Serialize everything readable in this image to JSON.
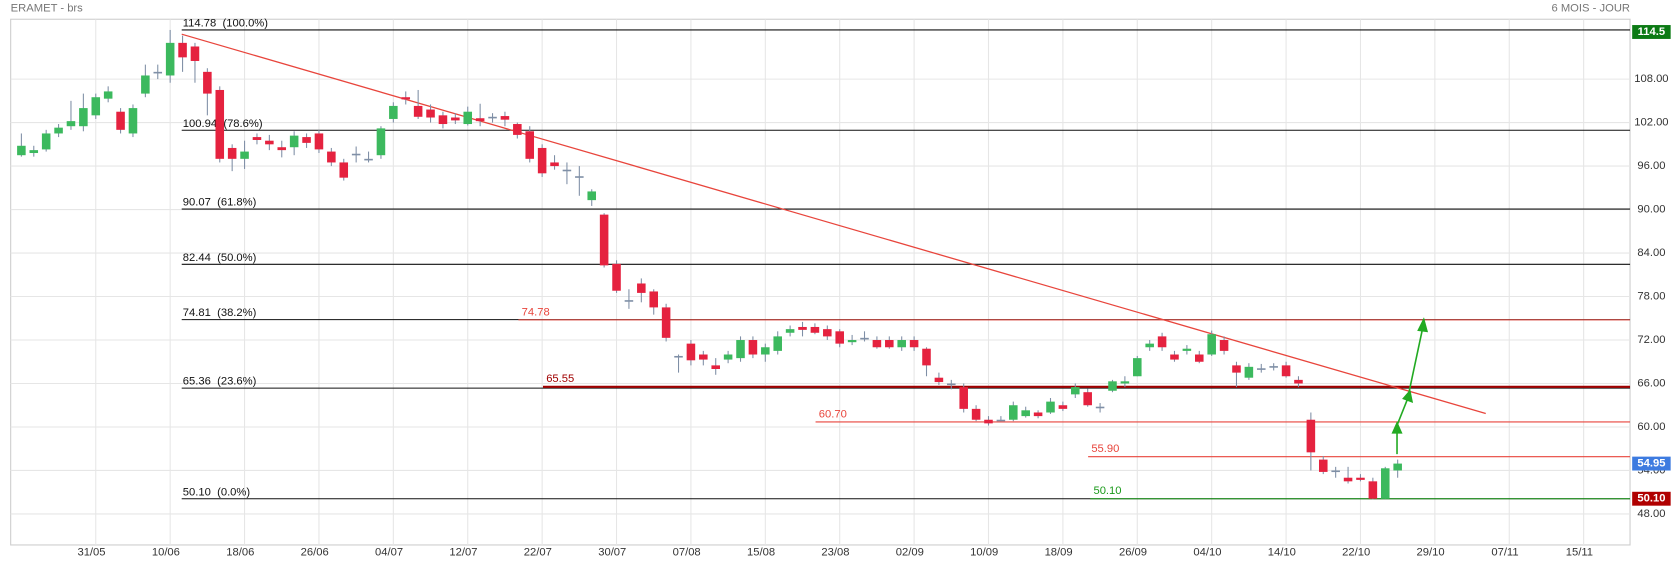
{
  "chart_data": {
    "type": "candlestick",
    "title": "ERAMET - brs",
    "period": "6 MOIS - JOUR",
    "up_color": "#3cb95e",
    "down_color": "#e5223f",
    "grid": true,
    "categories": [
      null,
      null,
      null,
      null,
      null,
      null,
      "31/05",
      null,
      null,
      null,
      null,
      null,
      "10/06",
      null,
      null,
      null,
      null,
      null,
      "18/06",
      null,
      null,
      null,
      null,
      null,
      "26/06",
      null,
      null,
      null,
      null,
      null,
      "04/07",
      null,
      null,
      null,
      null,
      null,
      "12/07",
      null,
      null,
      null,
      null,
      null,
      "22/07",
      null,
      null,
      null,
      null,
      null,
      "30/07",
      null,
      null,
      null,
      null,
      null,
      "07/08",
      null,
      null,
      null,
      null,
      null,
      "15/08",
      null,
      null,
      null,
      null,
      null,
      "23/08",
      null,
      null,
      null,
      null,
      null,
      "02/09",
      null,
      null,
      null,
      null,
      null,
      "10/09",
      null,
      null,
      null,
      null,
      null,
      "18/09",
      null,
      null,
      null,
      null,
      null,
      "26/09",
      null,
      null,
      null,
      null,
      null,
      "04/10",
      null,
      null,
      null,
      null,
      null,
      "14/10",
      null,
      null,
      null,
      null,
      null,
      "22/10",
      null,
      null,
      null,
      null,
      null,
      "29/10",
      null,
      null,
      null,
      null,
      null,
      "07/11",
      null,
      null,
      null,
      null,
      null,
      "15/11",
      null,
      null,
      null
    ],
    "open": [
      97.5,
      97.8,
      98.3,
      100.5,
      101.5,
      101.5,
      103,
      105.3,
      103.5,
      100.5,
      106,
      109,
      108.5,
      113,
      112.5,
      109,
      106.5,
      98.5,
      97,
      100,
      99.5,
      98.6,
      98.6,
      100,
      100.5,
      98,
      96.5,
      97.5,
      97,
      97.5,
      102.5,
      105.5,
      104.3,
      103.8,
      103,
      102.7,
      101.8,
      102.6,
      102.6,
      102.9,
      101.8,
      100.8,
      98.5,
      96.5,
      95.5,
      94.6,
      91.3,
      89.3,
      82.5,
      77.5,
      79.8,
      78.7,
      76.5,
      69.8,
      71.5,
      70,
      68.5,
      69.3,
      69.5,
      72,
      70,
      70.5,
      73,
      73.8,
      73.8,
      73.5,
      73.2,
      71.7,
      72.2,
      72,
      72,
      71,
      72,
      70.8,
      66.8,
      66,
      65.5,
      62.5,
      61,
      61,
      61,
      61.5,
      62,
      62,
      63,
      64.5,
      64.8,
      62.8,
      65,
      66,
      67,
      71,
      72.5,
      70,
      70.5,
      70,
      70,
      72,
      68.5,
      66.8,
      68,
      68.2,
      68.5,
      66.5,
      61,
      55.5,
      54,
      53,
      53,
      52.5,
      50.1,
      54,
      null,
      null,
      null,
      null,
      null,
      null,
      null,
      null,
      null,
      null,
      null,
      null,
      null,
      null,
      null,
      null,
      null,
      null
    ],
    "high": [
      100.5,
      98.8,
      101,
      101.8,
      105,
      106,
      106,
      107,
      104,
      104.5,
      110,
      110,
      114.78,
      114,
      113,
      109.5,
      107,
      99,
      99.5,
      100.5,
      100.3,
      99.5,
      100.8,
      100.5,
      101,
      98.5,
      97,
      98.7,
      98,
      101.5,
      104.8,
      106.3,
      106.5,
      104.5,
      103.5,
      103.3,
      104.2,
      104.6,
      103.3,
      103.5,
      102,
      101.5,
      99,
      97.5,
      96.5,
      96,
      92.8,
      89.5,
      83,
      79,
      80.5,
      79,
      77,
      70,
      72,
      70.5,
      69.5,
      70.5,
      72.5,
      72.5,
      71.5,
      73.2,
      74,
      74.5,
      74.3,
      74,
      73.5,
      72.7,
      73.2,
      72.5,
      72.5,
      72.5,
      72.5,
      71,
      67.5,
      66.5,
      66,
      63,
      61.5,
      61.5,
      63.5,
      62.8,
      62.3,
      64,
      63.5,
      66,
      65.3,
      63.3,
      66.5,
      67,
      69.8,
      72,
      73,
      70.5,
      71.3,
      70.5,
      73.3,
      72.5,
      69,
      68.8,
      68.7,
      68.8,
      69,
      67,
      62,
      56,
      54.5,
      54.5,
      53.5,
      53,
      54.5,
      55.5,
      null,
      null,
      null,
      null,
      null,
      null,
      null,
      null,
      null,
      null,
      null,
      null,
      null,
      null,
      null,
      null,
      null,
      null
    ],
    "low": [
      97.3,
      97.3,
      98,
      100,
      101,
      100.8,
      102.5,
      104.8,
      100.5,
      100,
      105.5,
      108,
      107.5,
      109,
      107.5,
      103,
      96.5,
      95.3,
      95.6,
      99,
      98.2,
      97.2,
      97.5,
      98.5,
      97.8,
      96,
      94,
      96.5,
      96.5,
      97,
      102,
      104.5,
      102.5,
      102,
      101.2,
      101.8,
      101.6,
      101.5,
      102,
      101.5,
      99.8,
      96.5,
      94.5,
      95.5,
      93.5,
      91.9,
      90.5,
      82,
      78.5,
      76.3,
      77.2,
      75.5,
      71.8,
      67.5,
      68.5,
      68.5,
      67.2,
      68.8,
      69,
      69.5,
      69,
      70,
      72.5,
      72.5,
      72.8,
      72,
      71,
      71.3,
      71.8,
      70.8,
      70.8,
      70.5,
      70.5,
      67,
      65.8,
      65.2,
      62,
      60.8,
      60.2,
      60.8,
      60.8,
      61.3,
      61.2,
      61.8,
      62.2,
      64,
      62.8,
      62,
      64.8,
      65.5,
      67,
      70.5,
      70.5,
      69,
      70,
      68.8,
      69.8,
      70,
      65.5,
      66.5,
      67.5,
      67.8,
      66.8,
      65.5,
      54,
      53.5,
      53,
      52.2,
      52.5,
      50,
      50.1,
      53,
      null,
      null,
      null,
      null,
      null,
      null,
      null,
      null,
      null,
      null,
      null,
      null,
      null,
      null,
      null,
      null,
      null,
      null
    ],
    "close": [
      98.8,
      98.2,
      100.5,
      101.3,
      102.2,
      104,
      105.5,
      106.3,
      101,
      104,
      108.5,
      109,
      113,
      111,
      110.5,
      106,
      97,
      97,
      98,
      99.6,
      99,
      98.2,
      100.2,
      99.2,
      98.3,
      96.5,
      94.4,
      97.7,
      96.8,
      101.2,
      104.3,
      105.2,
      102.8,
      102.7,
      101.8,
      102.3,
      103.5,
      102.2,
      102.8,
      102.4,
      100.3,
      97,
      95,
      96,
      95.5,
      94.5,
      92.5,
      82.3,
      78.8,
      77.3,
      78.5,
      76.5,
      72.3,
      69.6,
      69.2,
      69.3,
      68,
      70,
      72,
      70,
      71,
      72.5,
      73.5,
      73.4,
      73,
      72.5,
      71.5,
      72,
      72.3,
      71,
      71,
      72,
      71,
      68.5,
      66.2,
      65.8,
      62.5,
      61,
      60.5,
      61,
      63,
      62.3,
      61.5,
      63.5,
      62.5,
      65.5,
      63,
      62.7,
      66.3,
      66.3,
      69.5,
      71.5,
      71,
      69.3,
      70.8,
      69,
      72.8,
      70.5,
      67.5,
      68.3,
      68.1,
      68.4,
      67,
      66,
      56.5,
      53.8,
      53.8,
      52.5,
      52.7,
      50.1,
      54.3,
      54.95,
      null,
      null,
      null,
      null,
      null,
      null,
      null,
      null,
      null,
      null,
      null,
      null,
      null,
      null,
      null,
      null,
      null,
      null
    ],
    "ylim": [
      43.72,
      116.26
    ],
    "yticks": [
      {
        "value": 48,
        "label": "48.00"
      },
      {
        "value": 54,
        "label": "54.00"
      },
      {
        "value": 60,
        "label": "60.00"
      },
      {
        "value": 66,
        "label": "66.00"
      },
      {
        "value": 72,
        "label": "72.00"
      },
      {
        "value": 78,
        "label": "78.00"
      },
      {
        "value": 84,
        "label": "84.00"
      },
      {
        "value": 90,
        "label": "90.00"
      },
      {
        "value": 96,
        "label": "96.00"
      },
      {
        "value": 102,
        "label": "102.00"
      },
      {
        "value": 108,
        "label": "108.00"
      }
    ],
    "fibonacci": [
      {
        "value": 114.78,
        "label": "114.78  (100.0%)"
      },
      {
        "value": 100.94,
        "label": "100.94  (78.6%)"
      },
      {
        "value": 90.07,
        "label": "90.07  (61.8%)"
      },
      {
        "value": 82.44,
        "label": "82.44  (50.0%)"
      },
      {
        "value": 74.81,
        "label": "74.81  (38.2%)"
      },
      {
        "value": 65.36,
        "label": "65.36  (23.6%)"
      },
      {
        "value": 50.1,
        "label": "50.10  (0.0%)"
      }
    ],
    "levels": [
      {
        "value": 74.78,
        "label": "74.78",
        "color": "#e8453c"
      },
      {
        "value": 65.55,
        "label": "65.55",
        "color": "#a00000"
      },
      {
        "value": 60.7,
        "label": "60.70",
        "color": "#e8453c"
      },
      {
        "value": 55.9,
        "label": "55.90",
        "color": "#e8453c"
      },
      {
        "value": 50.1,
        "label": "50.10",
        "color": "#1a9a1a"
      }
    ],
    "price_tags": [
      {
        "value": 114.5,
        "label": "114.5",
        "color": "#0b7a14"
      },
      {
        "value": 54.95,
        "label": "54.95",
        "color": "#3d7be0"
      },
      {
        "value": 50.1,
        "label": "50.10",
        "color": "#b00000"
      }
    ]
  }
}
